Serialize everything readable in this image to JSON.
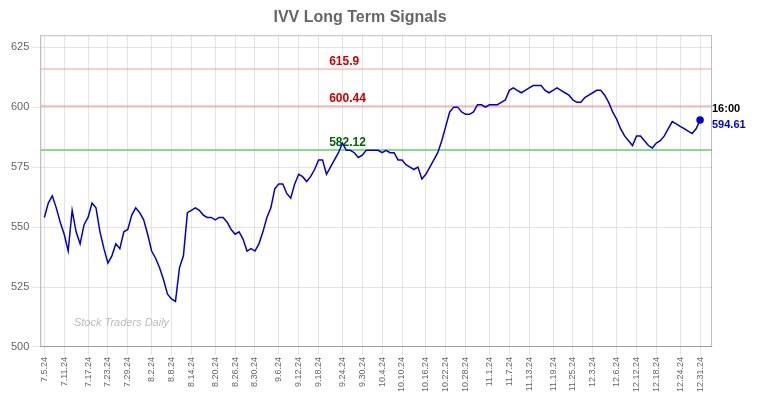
{
  "chart_data": {
    "type": "line",
    "title": "IVV Long Term Signals",
    "categories": [
      "7.5.24",
      null,
      null,
      null,
      null,
      "7.11.24",
      null,
      null,
      null,
      null,
      null,
      "7.17.24",
      null,
      null,
      null,
      null,
      "7.23.24",
      null,
      null,
      null,
      null,
      "7.29.24",
      null,
      null,
      null,
      null,
      null,
      "8.2.24",
      null,
      null,
      null,
      null,
      "8.8.24",
      null,
      null,
      null,
      null,
      "8.14.24",
      null,
      null,
      null,
      null,
      null,
      "8.20.24",
      null,
      null,
      null,
      null,
      "8.26.24",
      null,
      null,
      null,
      null,
      "8.30.24",
      null,
      null,
      null,
      null,
      null,
      "9.6.24",
      null,
      null,
      null,
      null,
      "9.12.24",
      null,
      null,
      null,
      null,
      "9.18.24",
      null,
      null,
      null,
      null,
      null,
      "9.24.24",
      null,
      null,
      null,
      null,
      "9.30.24",
      null,
      null,
      null,
      null,
      "10.4.24",
      null,
      null,
      null,
      null,
      "10.10.24",
      null,
      null,
      null,
      null,
      null,
      "10.16.24",
      null,
      null,
      null,
      null,
      "10.22.24",
      null,
      null,
      null,
      null,
      "10.28.24",
      null,
      null,
      null,
      null,
      null,
      "11.1.24",
      null,
      null,
      null,
      null,
      "11.7.24",
      null,
      null,
      null,
      null,
      "11.13.24",
      null,
      null,
      null,
      null,
      null,
      "11.19.24",
      null,
      null,
      null,
      null,
      "11.25.24",
      null,
      null,
      null,
      null,
      "12.3.24",
      null,
      null,
      null,
      null,
      null,
      "12.6.24",
      null,
      null,
      null,
      null,
      "12.12.24",
      null,
      null,
      null,
      null,
      "12.18.24",
      null,
      null,
      null,
      null,
      null,
      "12.24.24",
      null,
      null,
      null,
      null,
      "12.31.24"
    ],
    "values": [
      554,
      560,
      563,
      558,
      552,
      547,
      540,
      557,
      548,
      543,
      551,
      554,
      560,
      558,
      548,
      541,
      535,
      538,
      543,
      541,
      548,
      549,
      555,
      558,
      556,
      553,
      547,
      540,
      537,
      533,
      528,
      522,
      520,
      519,
      533,
      538,
      556,
      557,
      558,
      557,
      555,
      554,
      554,
      553,
      554,
      554,
      552,
      549,
      547,
      548,
      545,
      540,
      541,
      540,
      543,
      548,
      554,
      558,
      566,
      568,
      568,
      564,
      562,
      568,
      572,
      571,
      569,
      571,
      574,
      578,
      578,
      572,
      575,
      578,
      581,
      585,
      582,
      582,
      581,
      579,
      580,
      582,
      582,
      582,
      582,
      581,
      582,
      581,
      581,
      578,
      578,
      576,
      575,
      574,
      575,
      570,
      572,
      575,
      578,
      581,
      586,
      592,
      598,
      600,
      600,
      598,
      597,
      597,
      598,
      601,
      601,
      600,
      601,
      601,
      601,
      602,
      603,
      607,
      608,
      607,
      606,
      607,
      608,
      609,
      609,
      609,
      607,
      606,
      607,
      608,
      607,
      606,
      605,
      603,
      602,
      602,
      604,
      605,
      606,
      607,
      607,
      605,
      602,
      598,
      595,
      591,
      588,
      586,
      584,
      588,
      588,
      586,
      584,
      583,
      585,
      586,
      588,
      591,
      594,
      593,
      592,
      591,
      590,
      589,
      591,
      594.61
    ],
    "color": "#0000cc",
    "ylim": [
      500,
      630
    ],
    "yticks": [
      500,
      525,
      550,
      575,
      600,
      625
    ],
    "grid": true,
    "hlines": [
      {
        "y": 615.9,
        "color": "#ff9999",
        "label": {
          "text": "615.9",
          "color": "#cc0000"
        }
      },
      {
        "y": 600.44,
        "color": "#ff9999",
        "label": {
          "text": "600.44",
          "color": "#cc0000"
        }
      },
      {
        "y": 582.12,
        "color": "#66cc66",
        "label": {
          "text": "582.12",
          "color": "#006600"
        }
      }
    ],
    "annotations": [
      {
        "text": "16:00",
        "color": "#000000"
      },
      {
        "text": "594.61",
        "color": "#0000dd"
      }
    ],
    "watermark": {
      "text": "Stock Traders Daily",
      "color": "#bbbbbb"
    }
  }
}
